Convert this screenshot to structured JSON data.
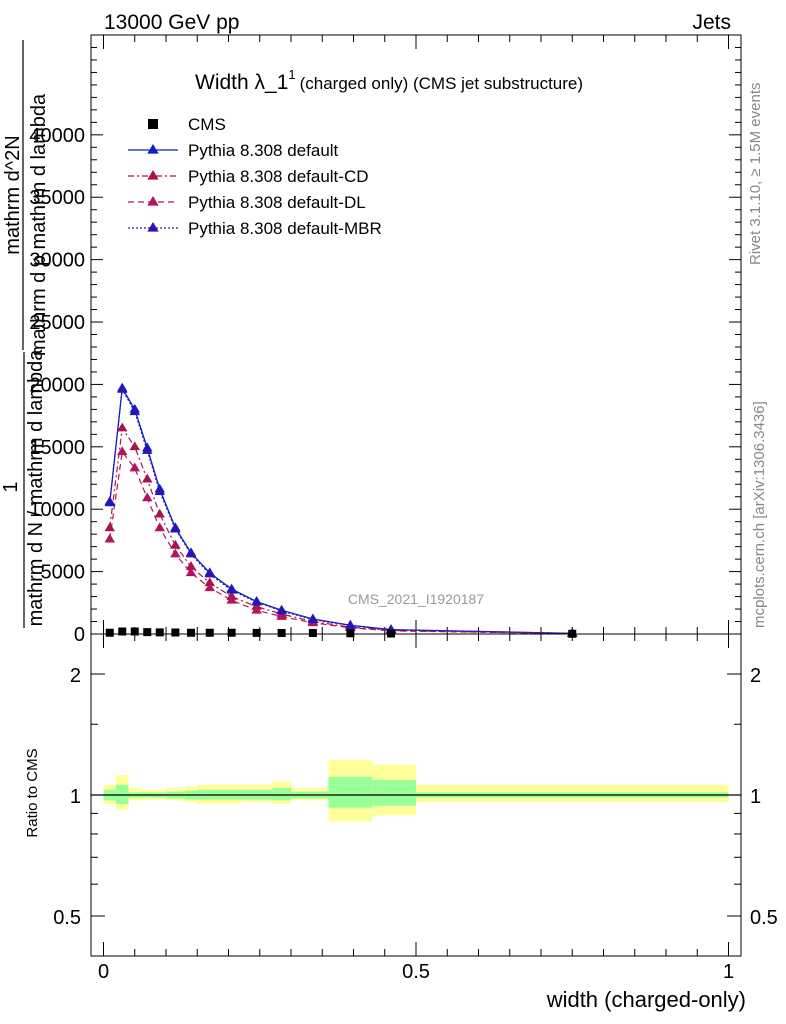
{
  "header": {
    "left": "13000 GeV pp",
    "right": "Jets"
  },
  "side_labels": {
    "rivet": "Rivet 3.1.10, ≥ 1.5M events",
    "mcplots": "mcplots.cern.ch [arXiv:1306.3436]"
  },
  "watermark": "CMS_2021_I1920187",
  "ylabel": {
    "one": "1",
    "num1": "mathrm dN",
    "den1": "mathrm d N  / mathrm d lambda",
    "num2": "",
    "den2": "",
    "line_a": "mathrm d^2N",
    "line_b": "mathrm d p mathrm d lambda",
    "line_c": "mathrm d N  / mathrm d lambda"
  },
  "ratio_ylabel": "Ratio to CMS",
  "xlabel": "width (charged-only)",
  "colors": {
    "default": "#0d1fc8",
    "cd": "#a8134a",
    "dl": "#b0155e",
    "mbr": "#2a14b8",
    "band_inner": "#99ff99",
    "band_outer": "#ffff99"
  },
  "chart_data": {
    "type": "line",
    "title_main": "Width λ_1",
    "title_sup": "1",
    "title_sub": "(charged only) (CMS jet substructure)",
    "xlim": [
      -0.02,
      1.02
    ],
    "ylim": [
      0,
      48000
    ],
    "y_ticks": [
      0,
      5000,
      10000,
      15000,
      20000,
      25000,
      30000,
      35000,
      40000
    ],
    "y_tick_labels": [
      "0",
      "5000",
      "10000",
      "15000",
      "20000",
      "25000",
      "30000",
      "35000",
      "40000"
    ],
    "x_ticks": [
      0,
      0.5,
      1
    ],
    "x_tick_labels": [
      "0",
      "0.5",
      "1"
    ],
    "ratio_ylim": [
      0.4,
      2.3
    ],
    "ratio_ticks": [
      0.5,
      1,
      2
    ],
    "ratio_tick_labels": [
      "0.5",
      "1",
      "2"
    ],
    "legend": [
      "CMS",
      "Pythia 8.308 default",
      "Pythia 8.308 default-CD",
      "Pythia 8.308 default-DL",
      "Pythia 8.308 default-MBR"
    ],
    "x": [
      0.01,
      0.03,
      0.05,
      0.07,
      0.09,
      0.115,
      0.14,
      0.17,
      0.205,
      0.245,
      0.285,
      0.335,
      0.395,
      0.46,
      0.75
    ],
    "bin_edges": [
      0,
      0.02,
      0.04,
      0.06,
      0.08,
      0.1,
      0.13,
      0.15,
      0.19,
      0.22,
      0.27,
      0.3,
      0.36,
      0.43,
      0.5,
      1.0
    ],
    "cms_values": [
      100,
      200,
      200,
      150,
      130,
      120,
      100,
      100,
      100,
      90,
      80,
      80,
      60,
      40,
      20
    ],
    "series": [
      {
        "name": "Pythia 8.308 default",
        "values": [
          10500,
          19700,
          18000,
          14900,
          11600,
          8500,
          6500,
          4900,
          3600,
          2600,
          1900,
          1200,
          700,
          350,
          50
        ]
      },
      {
        "name": "Pythia 8.308 default-CD",
        "values": [
          8500,
          16500,
          15000,
          12400,
          9600,
          7100,
          5400,
          4100,
          3000,
          2200,
          1600,
          1000,
          550,
          280,
          40
        ]
      },
      {
        "name": "Pythia 8.308 default-DL",
        "values": [
          7600,
          14600,
          13300,
          10900,
          8500,
          6400,
          4900,
          3700,
          2700,
          1900,
          1400,
          900,
          500,
          250,
          35
        ]
      },
      {
        "name": "Pythia 8.308 default-MBR",
        "values": [
          10600,
          19600,
          17800,
          14700,
          11400,
          8400,
          6400,
          4800,
          3500,
          2550,
          1850,
          1150,
          680,
          340,
          50
        ]
      }
    ],
    "ratio_bands": [
      {
        "x0": 0.0,
        "x1": 0.02,
        "inner": [
          0.97,
          1.03
        ],
        "outer": [
          0.95,
          1.06
        ]
      },
      {
        "x0": 0.02,
        "x1": 0.04,
        "inner": [
          0.95,
          1.06
        ],
        "outer": [
          0.92,
          1.12
        ]
      },
      {
        "x0": 0.04,
        "x1": 0.06,
        "inner": [
          0.985,
          1.015
        ],
        "outer": [
          0.97,
          1.04
        ]
      },
      {
        "x0": 0.06,
        "x1": 0.08,
        "inner": [
          0.985,
          1.015
        ],
        "outer": [
          0.97,
          1.03
        ]
      },
      {
        "x0": 0.08,
        "x1": 0.1,
        "inner": [
          0.985,
          1.015
        ],
        "outer": [
          0.975,
          1.03
        ]
      },
      {
        "x0": 0.1,
        "x1": 0.13,
        "inner": [
          0.98,
          1.02
        ],
        "outer": [
          0.97,
          1.04
        ]
      },
      {
        "x0": 0.13,
        "x1": 0.15,
        "inner": [
          0.975,
          1.025
        ],
        "outer": [
          0.96,
          1.05
        ]
      },
      {
        "x0": 0.15,
        "x1": 0.19,
        "inner": [
          0.975,
          1.03
        ],
        "outer": [
          0.95,
          1.06
        ]
      },
      {
        "x0": 0.19,
        "x1": 0.22,
        "inner": [
          0.975,
          1.03
        ],
        "outer": [
          0.95,
          1.06
        ]
      },
      {
        "x0": 0.22,
        "x1": 0.27,
        "inner": [
          0.975,
          1.03
        ],
        "outer": [
          0.96,
          1.06
        ]
      },
      {
        "x0": 0.27,
        "x1": 0.3,
        "inner": [
          0.97,
          1.04
        ],
        "outer": [
          0.95,
          1.08
        ]
      },
      {
        "x0": 0.3,
        "x1": 0.36,
        "inner": [
          0.98,
          1.02
        ],
        "outer": [
          0.97,
          1.04
        ]
      },
      {
        "x0": 0.36,
        "x1": 0.43,
        "inner": [
          0.93,
          1.11
        ],
        "outer": [
          0.86,
          1.22
        ]
      },
      {
        "x0": 0.43,
        "x1": 0.5,
        "inner": [
          0.94,
          1.09
        ],
        "outer": [
          0.89,
          1.19
        ]
      },
      {
        "x0": 0.5,
        "x1": 1.0,
        "inner": [
          0.985,
          1.015
        ],
        "outer": [
          0.96,
          1.06
        ]
      }
    ]
  }
}
